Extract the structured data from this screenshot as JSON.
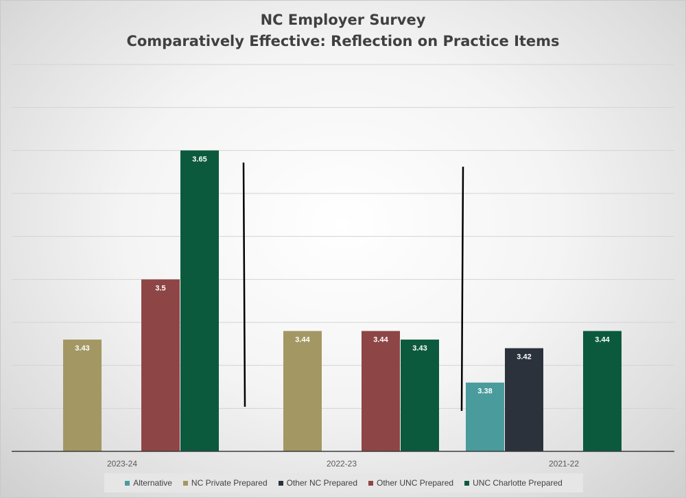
{
  "chart_data": {
    "type": "bar",
    "title": [
      "NC Employer Survey",
      "Comparatively Effective: Reflection on Practice Items"
    ],
    "xlabel": "",
    "ylabel": "",
    "ylim": [
      3.3,
      3.75
    ],
    "grid": true,
    "legend_position": "bottom",
    "categories": [
      "2023-24",
      "2022-23",
      "2021-22"
    ],
    "series": [
      {
        "name": "Alternative",
        "color": "#4a9b9c",
        "values": [
          null,
          null,
          3.38
        ]
      },
      {
        "name": "NC Private Prepared",
        "color": "#a39763",
        "values": [
          3.43,
          3.44,
          null
        ]
      },
      {
        "name": "Other NC Prepared",
        "color": "#2b323c",
        "values": [
          null,
          null,
          3.42
        ]
      },
      {
        "name": "Other UNC Prepared",
        "color": "#8e4545",
        "values": [
          3.5,
          3.44,
          null
        ]
      },
      {
        "name": "UNC Charlotte Prepared",
        "color": "#0b5a3e",
        "values": [
          3.65,
          3.43,
          3.44
        ]
      }
    ],
    "data_labels": [
      [
        "",
        "3.43",
        "",
        "3.5",
        "3.65"
      ],
      [
        "",
        "3.44",
        "",
        "3.44",
        "3.43"
      ],
      [
        "3.38",
        "",
        "3.42",
        "",
        "3.44"
      ]
    ]
  }
}
